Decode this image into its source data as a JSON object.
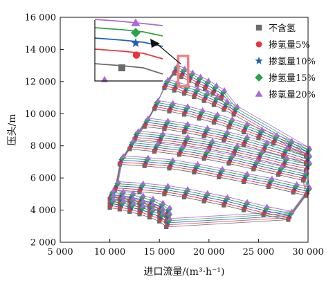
{
  "chart_data": {
    "type": "scatter",
    "title": "",
    "xlabel": "进口流量/(m³·h⁻¹)",
    "ylabel": "压头/m",
    "xlim": [
      5000,
      30000
    ],
    "ylim": [
      2000,
      16000
    ],
    "xticks": [
      5000,
      10000,
      15000,
      20000,
      25000,
      30000
    ],
    "xtick_labels": [
      "5 000",
      "10 000",
      "15 000",
      "20 000",
      "25 000",
      "30 000"
    ],
    "yticks": [
      2000,
      4000,
      6000,
      8000,
      10000,
      12000,
      14000,
      16000
    ],
    "ytick_labels": [
      "2 000",
      "4 000",
      "6 000",
      "8 000",
      "10 000",
      "12 000",
      "14 000",
      "16 000"
    ],
    "grid": false,
    "legend_position": "right",
    "series": [
      {
        "name": "不含氢",
        "marker": "square",
        "color": "#6b6b6b",
        "offset": 0
      },
      {
        "name": "掺氢量5%",
        "marker": "circle",
        "color": "#e8343a",
        "offset": 1
      },
      {
        "name": "掺氢量10%",
        "marker": "star",
        "color": "#1f5fbf",
        "offset": 2
      },
      {
        "name": "掺氢量15%",
        "marker": "diamond",
        "color": "#2aa24a",
        "offset": 3
      },
      {
        "name": "掺氢量20%",
        "marker": "triangle",
        "color": "#a66bd8",
        "offset": 4
      }
    ],
    "speed_lines_base": [
      {
        "x": [
          10000,
          11000,
          12000,
          13000,
          14000,
          15000,
          15700
        ],
        "y": [
          4700,
          4650,
          4550,
          4400,
          4200,
          3950,
          3650
        ]
      },
      {
        "x": [
          10000,
          11000,
          12000,
          13000,
          14000,
          15000,
          15700
        ],
        "y": [
          4400,
          4320,
          4200,
          4050,
          3850,
          3600,
          3300
        ]
      },
      {
        "x": [
          10000,
          11000,
          12000,
          13000,
          14000,
          15000,
          15700
        ],
        "y": [
          4150,
          4050,
          3900,
          3750,
          3550,
          3300,
          2950
        ]
      },
      {
        "x": [
          10500,
          13000,
          15500,
          17500,
          19500,
          21500,
          23500,
          25500,
          28000
        ],
        "y": [
          5250,
          5150,
          5000,
          4800,
          4550,
          4300,
          4000,
          3700,
          3400
        ]
      },
      {
        "x": [
          11000,
          13500,
          16000,
          18500,
          21000,
          23500,
          26000,
          28500,
          29800
        ],
        "y": [
          6850,
          6750,
          6600,
          6350,
          6050,
          5750,
          5450,
          5100,
          4900
        ]
      },
      {
        "x": [
          12000,
          14500,
          17000,
          19500,
          22000,
          24500,
          27000,
          29500
        ],
        "y": [
          7800,
          7650,
          7450,
          7200,
          6900,
          6550,
          6200,
          5850
        ]
      },
      {
        "x": [
          12500,
          15000,
          17500,
          20000,
          22500,
          25000,
          27500,
          29800
        ],
        "y": [
          8400,
          8250,
          8050,
          7800,
          7500,
          7150,
          6750,
          6450
        ]
      },
      {
        "x": [
          13500,
          15500,
          17500,
          19500,
          21500,
          23500,
          25500,
          27500,
          29800
        ],
        "y": [
          9200,
          9050,
          8850,
          8600,
          8350,
          8050,
          7700,
          7350,
          6900
        ]
      },
      {
        "x": [
          14500,
          16000,
          17500,
          19000,
          20500,
          22000,
          23500,
          25000,
          26500,
          28000,
          29800
        ],
        "y": [
          10300,
          10150,
          9950,
          9700,
          9450,
          9150,
          8850,
          8500,
          8150,
          7800,
          7350
        ]
      },
      {
        "x": [
          15500,
          16500,
          17500,
          18500,
          19500,
          20500,
          21500,
          22500
        ],
        "y": [
          11600,
          11450,
          11250,
          11050,
          10800,
          10550,
          10250,
          9950
        ]
      },
      {
        "x": [
          16500,
          17200,
          18000,
          18800,
          19600,
          20400,
          21200
        ],
        "y": [
          12500,
          12300,
          12050,
          11800,
          11550,
          11250,
          10950
        ]
      }
    ],
    "x_offset_per_series": 90,
    "y_offset_per_series": 130,
    "inset": {
      "description_markers": [
        "square",
        "circle",
        "star",
        "diamond",
        "triangle"
      ],
      "callout_marker": "triangle"
    }
  }
}
